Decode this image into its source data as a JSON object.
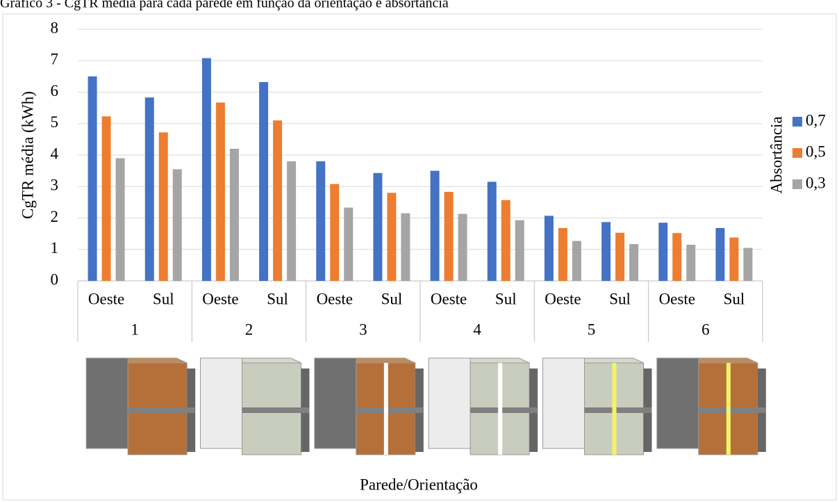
{
  "chart_data": {
    "type": "bar",
    "title": "Gráfico 3 - CgTR média para cada parede em função da orientação e absortância",
    "y_label": "CgTR média (kWh)",
    "x_label": "Parede/Orientação",
    "legend_title": "Absortância",
    "legend_position": "right",
    "categories": [
      "Oeste",
      "Sul",
      "Oeste",
      "Sul",
      "Oeste",
      "Sul",
      "Oeste",
      "Sul",
      "Oeste",
      "Sul",
      "Oeste",
      "Sul"
    ],
    "groups": [
      "1",
      "2",
      "3",
      "4",
      "5",
      "6"
    ],
    "series": [
      {
        "name": "0,7",
        "color": "#4472c4",
        "values": [
          6.5,
          5.83,
          7.08,
          6.32,
          3.8,
          3.43,
          3.5,
          3.15,
          2.07,
          1.87,
          1.85,
          1.68
        ]
      },
      {
        "name": "0,5",
        "color": "#ed7d31",
        "values": [
          5.23,
          4.72,
          5.67,
          5.1,
          3.08,
          2.8,
          2.83,
          2.57,
          1.68,
          1.53,
          1.52,
          1.38
        ]
      },
      {
        "name": "0,3",
        "color": "#a5a5a5",
        "values": [
          3.9,
          3.55,
          4.2,
          3.8,
          2.33,
          2.15,
          2.13,
          1.93,
          1.27,
          1.17,
          1.15,
          1.05
        ]
      }
    ],
    "ylim": [
      0,
      8
    ],
    "yticks": [
      0,
      1,
      2,
      3,
      4,
      5,
      6,
      7,
      8
    ],
    "grid": true
  }
}
